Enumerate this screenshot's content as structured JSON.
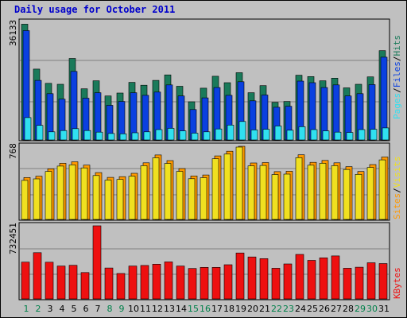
{
  "title": "Daily usage for October 2011",
  "colors": {
    "hits": "#1a7a5a",
    "files": "#0a40e0",
    "pages": "#30e0f0",
    "visits": "#f0e020",
    "sites": "#ff9900",
    "kbytes": "#ee1010",
    "weekday_label": "#000000",
    "weekend_label": "#00804a"
  },
  "panels": {
    "top": {
      "ymax_label": "36133",
      "legend": [
        "Pages",
        "/",
        "Files",
        "/",
        "Hits"
      ]
    },
    "middle": {
      "ymax_label": "768",
      "legend": [
        "Sites",
        "/",
        "Visits"
      ]
    },
    "bottom": {
      "ymax_label": "732451",
      "legend": [
        "KBytes"
      ]
    }
  },
  "chart_data": [
    {
      "type": "bar",
      "title": "Daily usage for October 2011",
      "categories": [
        "1",
        "2",
        "3",
        "4",
        "5",
        "6",
        "7",
        "8",
        "9",
        "10",
        "11",
        "12",
        "13",
        "14",
        "15",
        "16",
        "17",
        "18",
        "19",
        "20",
        "21",
        "22",
        "23",
        "24",
        "25",
        "26",
        "27",
        "28",
        "29",
        "30",
        "31"
      ],
      "weekend_days": [
        "1",
        "2",
        "8",
        "9",
        "15",
        "16",
        "22",
        "23",
        "29",
        "30"
      ],
      "ymax_label": "36133",
      "ylim": [
        0,
        36133
      ],
      "series": [
        {
          "name": "Hits",
          "values": [
            35800,
            21900,
            17500,
            17200,
            25200,
            15800,
            18300,
            13600,
            14500,
            17800,
            16900,
            18400,
            20100,
            16600,
            11800,
            16000,
            19700,
            17700,
            20800,
            14600,
            16800,
            11600,
            11900,
            20000,
            19600,
            18300,
            19100,
            16100,
            17200,
            19500,
            27600
          ]
        },
        {
          "name": "Files",
          "values": [
            33800,
            18400,
            14300,
            12600,
            21200,
            12900,
            14600,
            10700,
            11900,
            14600,
            13800,
            14800,
            17000,
            13600,
            9400,
            13000,
            16200,
            13800,
            18000,
            12100,
            13900,
            10100,
            10400,
            18200,
            17700,
            16200,
            17000,
            13600,
            14300,
            17100,
            25600
          ]
        },
        {
          "name": "Pages",
          "values": [
            6900,
            4500,
            2500,
            2900,
            3500,
            2900,
            2400,
            2000,
            1900,
            2200,
            2500,
            3200,
            3600,
            2800,
            2100,
            2500,
            3400,
            4600,
            5700,
            3100,
            3300,
            4300,
            3000,
            4100,
            3200,
            2800,
            2400,
            2300,
            3200,
            3300,
            3700
          ]
        }
      ]
    },
    {
      "type": "bar",
      "categories": [
        "1",
        "2",
        "3",
        "4",
        "5",
        "6",
        "7",
        "8",
        "9",
        "10",
        "11",
        "12",
        "13",
        "14",
        "15",
        "16",
        "17",
        "18",
        "19",
        "20",
        "21",
        "22",
        "23",
        "24",
        "25",
        "26",
        "27",
        "28",
        "29",
        "30",
        "31"
      ],
      "ymax_label": "768",
      "ylim": [
        0,
        768
      ],
      "series": [
        {
          "name": "Visits",
          "values": [
            410,
            426,
            503,
            560,
            573,
            541,
            461,
            413,
            420,
            454,
            564,
            647,
            588,
            504,
            427,
            438,
            637,
            686,
            760,
            563,
            567,
            472,
            476,
            649,
            569,
            589,
            564,
            524,
            473,
            546,
            625
          ]
        },
        {
          "name": "Sites",
          "values": [
            440,
            454,
            532,
            589,
            605,
            570,
            492,
            442,
            449,
            484,
            594,
            677,
            618,
            534,
            457,
            467,
            667,
            716,
            768,
            593,
            597,
            502,
            506,
            679,
            599,
            619,
            594,
            554,
            503,
            576,
            655
          ]
        }
      ]
    },
    {
      "type": "bar",
      "categories": [
        "1",
        "2",
        "3",
        "4",
        "5",
        "6",
        "7",
        "8",
        "9",
        "10",
        "11",
        "12",
        "13",
        "14",
        "15",
        "16",
        "17",
        "18",
        "19",
        "20",
        "21",
        "22",
        "23",
        "24",
        "25",
        "26",
        "27",
        "28",
        "29",
        "30",
        "31"
      ],
      "ymax_label": "732451",
      "ylim": [
        0,
        732451
      ],
      "series": [
        {
          "name": "KBytes",
          "values": [
            369000,
            463000,
            368000,
            330000,
            337000,
            264000,
            732451,
            310000,
            255000,
            330000,
            335000,
            348000,
            371000,
            330000,
            305000,
            316000,
            316000,
            342000,
            460000,
            420000,
            404000,
            307000,
            350000,
            446000,
            386000,
            412000,
            431000,
            307000,
            318000,
            362000,
            354000
          ]
        }
      ]
    }
  ]
}
